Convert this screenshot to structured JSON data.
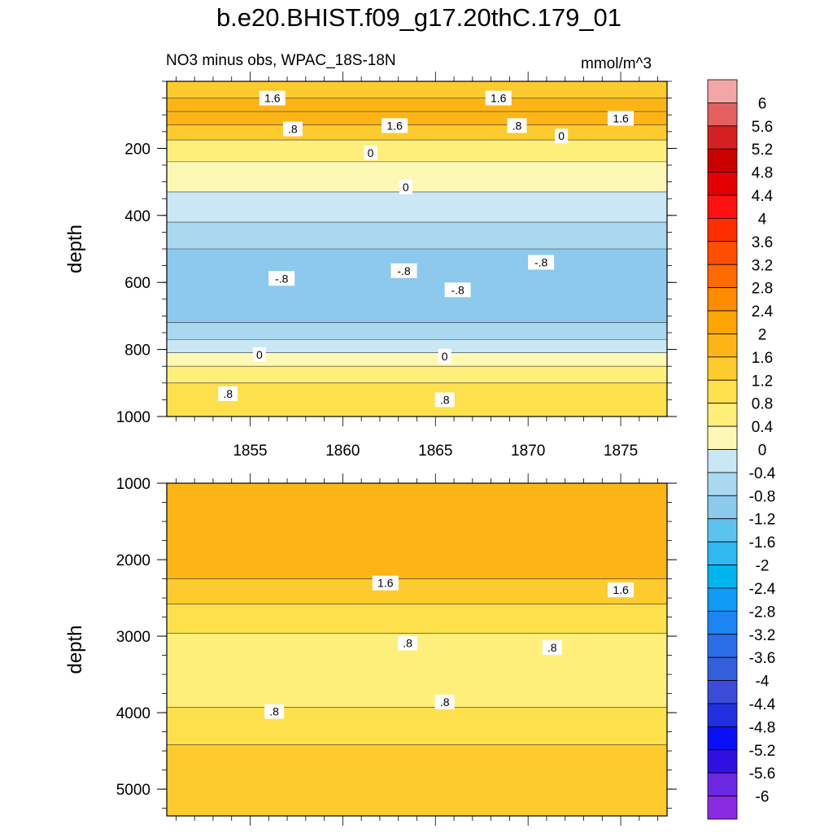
{
  "title": "b.e20.BHIST.f09_g17.20thC.179_01",
  "subtitle_left": "NO3 minus obs, WPAC_18S-18N",
  "units": "mmol/m^3",
  "chart_data": [
    {
      "type": "heatmap",
      "panel": "upper",
      "ylabel": "depth",
      "xlim": [
        1850.5,
        1877.5
      ],
      "ylim": [
        0,
        1000
      ],
      "y_inverted": true,
      "x_ticks": [
        1855,
        1860,
        1865,
        1870,
        1875
      ],
      "y_ticks": [
        200,
        400,
        600,
        800,
        1000
      ],
      "bands": [
        {
          "depth_top": 0,
          "depth_bottom": 50,
          "value": 1.2
        },
        {
          "depth_top": 50,
          "depth_bottom": 90,
          "value": 1.6
        },
        {
          "depth_top": 90,
          "depth_bottom": 130,
          "value": 1.8
        },
        {
          "depth_top": 130,
          "depth_bottom": 175,
          "value": 1.2
        },
        {
          "depth_top": 175,
          "depth_bottom": 240,
          "value": 0.4
        },
        {
          "depth_top": 240,
          "depth_bottom": 330,
          "value": 0.2
        },
        {
          "depth_top": 330,
          "depth_bottom": 420,
          "value": -0.2
        },
        {
          "depth_top": 420,
          "depth_bottom": 500,
          "value": -0.6
        },
        {
          "depth_top": 500,
          "depth_bottom": 720,
          "value": -1.0
        },
        {
          "depth_top": 720,
          "depth_bottom": 770,
          "value": -0.6
        },
        {
          "depth_top": 770,
          "depth_bottom": 810,
          "value": -0.2
        },
        {
          "depth_top": 810,
          "depth_bottom": 850,
          "value": 0.2
        },
        {
          "depth_top": 850,
          "depth_bottom": 900,
          "value": 0.6
        },
        {
          "depth_top": 900,
          "depth_bottom": 1000,
          "value": 1.0
        }
      ],
      "contour_labels": [
        {
          "text": "1.6",
          "x": 1856.2,
          "depth": 50
        },
        {
          "text": "1.6",
          "x": 1868.4,
          "depth": 50
        },
        {
          "text": "1.6",
          "x": 1862.8,
          "depth": 132
        },
        {
          "text": "1.6",
          "x": 1875.0,
          "depth": 110
        },
        {
          "text": ".8",
          "x": 1857.3,
          "depth": 142
        },
        {
          "text": ".8",
          "x": 1869.4,
          "depth": 132
        },
        {
          "text": "0",
          "x": 1871.8,
          "depth": 163
        },
        {
          "text": "0",
          "x": 1861.5,
          "depth": 213
        },
        {
          "text": "0",
          "x": 1863.4,
          "depth": 315
        },
        {
          "text": "-.8",
          "x": 1870.7,
          "depth": 540
        },
        {
          "text": "-.8",
          "x": 1863.3,
          "depth": 565
        },
        {
          "text": "-.8",
          "x": 1856.7,
          "depth": 588
        },
        {
          "text": "-.8",
          "x": 1866.2,
          "depth": 622
        },
        {
          "text": "0",
          "x": 1855.5,
          "depth": 815
        },
        {
          "text": "0",
          "x": 1865.5,
          "depth": 820
        },
        {
          "text": ".8",
          "x": 1853.8,
          "depth": 932
        },
        {
          "text": ".8",
          "x": 1865.5,
          "depth": 950
        }
      ]
    },
    {
      "type": "heatmap",
      "panel": "lower",
      "ylabel": "depth",
      "xlim": [
        1850.5,
        1877.5
      ],
      "ylim": [
        1000,
        5350
      ],
      "y_inverted": true,
      "y_ticks": [
        1000,
        2000,
        3000,
        4000,
        5000
      ],
      "bands": [
        {
          "depth_top": 1000,
          "depth_bottom": 2250,
          "value": 1.8
        },
        {
          "depth_top": 2250,
          "depth_bottom": 2580,
          "value": 1.4
        },
        {
          "depth_top": 2580,
          "depth_bottom": 2960,
          "value": 1.0
        },
        {
          "depth_top": 2960,
          "depth_bottom": 3930,
          "value": 0.6
        },
        {
          "depth_top": 3930,
          "depth_bottom": 4420,
          "value": 1.0
        },
        {
          "depth_top": 4420,
          "depth_bottom": 5350,
          "value": 1.4
        }
      ],
      "contour_labels": [
        {
          "text": "1.6",
          "x": 1862.3,
          "depth": 2305
        },
        {
          "text": "1.6",
          "x": 1875.0,
          "depth": 2395
        },
        {
          "text": ".8",
          "x": 1863.5,
          "depth": 3090
        },
        {
          "text": ".8",
          "x": 1871.3,
          "depth": 3150
        },
        {
          "text": ".8",
          "x": 1856.3,
          "depth": 3985
        },
        {
          "text": ".8",
          "x": 1865.5,
          "depth": 3860
        }
      ]
    }
  ],
  "colorbar": {
    "levels": [
      "6",
      "5.6",
      "5.2",
      "4.8",
      "4.4",
      "4",
      "3.6",
      "3.2",
      "2.8",
      "2.4",
      "2",
      "1.6",
      "1.2",
      "0.8",
      "0.4",
      "0",
      "-0.4",
      "-0.8",
      "-1.2",
      "-1.6",
      "-2",
      "-2.4",
      "-2.8",
      "-3.2",
      "-3.6",
      "-4",
      "-4.4",
      "-4.8",
      "-5.2",
      "-5.6",
      "-6"
    ],
    "colors": [
      "#f4a6a6",
      "#e26060",
      "#d42020",
      "#c80000",
      "#e30000",
      "#ff1010",
      "#ff2e00",
      "#ff4e00",
      "#ff6a00",
      "#ff8c00",
      "#ffa500",
      "#fdb515",
      "#fecb2e",
      "#fde04c",
      "#fdef7a",
      "#fef8b5",
      "#c9e7f4",
      "#a9d8ef",
      "#8cc9ec",
      "#5ec2ef",
      "#30b8f0",
      "#00b4ee",
      "#0f9bf5",
      "#1c85f3",
      "#2a6fe8",
      "#335fdd",
      "#3b4cd8",
      "#2030e0",
      "#0a10f5",
      "#3010e0",
      "#6b28e0",
      "#8a2be2"
    ]
  }
}
